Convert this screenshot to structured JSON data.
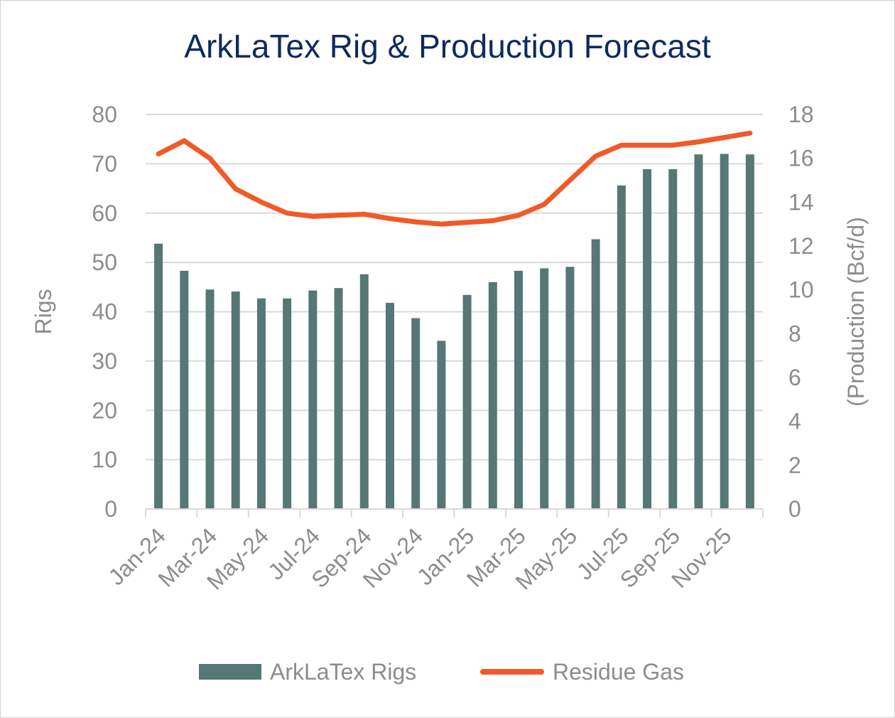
{
  "colors": {
    "bars": "#557775",
    "line": "#f05a28",
    "title": "#0e2a5e",
    "axis_text": "#8c8c8c",
    "grid": "#d9d9d9"
  },
  "chart_data": {
    "type": "bar",
    "title": "ArkLaTex Rig & Production Forecast",
    "ylabel": "Rigs",
    "y2label": "(Production (Bcf/d)",
    "ylim": [
      0,
      80
    ],
    "y2lim": [
      0,
      18
    ],
    "yticks": [
      "0",
      "10",
      "20",
      "30",
      "40",
      "50",
      "60",
      "70",
      "80"
    ],
    "y2ticks": [
      "0",
      "2",
      "4",
      "6",
      "8",
      "10",
      "12",
      "14",
      "16",
      "18"
    ],
    "xtick_labels": [
      "Jan-24",
      "Mar-24",
      "May-24",
      "Jul-24",
      "Sep-24",
      "Nov-24",
      "Jan-25",
      "Mar-25",
      "May-25",
      "Jul-25",
      "Sep-25",
      "Nov-25"
    ],
    "categories": [
      "Jan-24",
      "Feb-24",
      "Mar-24",
      "Apr-24",
      "May-24",
      "Jun-24",
      "Jul-24",
      "Aug-24",
      "Sep-24",
      "Oct-24",
      "Nov-24",
      "Dec-24",
      "Jan-25",
      "Feb-25",
      "Mar-25",
      "Apr-25",
      "May-25",
      "Jun-25",
      "Jul-25",
      "Aug-25",
      "Sep-25",
      "Oct-25",
      "Nov-25",
      "Dec-25"
    ],
    "grid": true,
    "legend_position": "bottom",
    "series": [
      {
        "name": "ArkLaTex Rigs",
        "type": "bar",
        "axis": "left",
        "values": [
          53.8,
          48.3,
          44.5,
          44.1,
          42.7,
          42.7,
          44.3,
          44.8,
          47.6,
          41.8,
          38.7,
          34.1,
          43.4,
          46.0,
          48.3,
          48.8,
          49.1,
          54.7,
          65.6,
          68.9,
          68.9,
          71.9,
          72.0,
          71.9
        ]
      },
      {
        "name": "Residue Gas",
        "type": "line",
        "axis": "right",
        "values": [
          16.2,
          16.8,
          16.0,
          14.6,
          14.0,
          13.5,
          13.35,
          13.4,
          13.45,
          13.25,
          13.1,
          13.0,
          13.08,
          13.15,
          13.4,
          13.9,
          15.0,
          16.1,
          16.6,
          16.6,
          16.6,
          16.75,
          16.95,
          17.15
        ]
      }
    ]
  },
  "legend": {
    "bars_label": "ArkLaTex Rigs",
    "line_label": "Residue Gas"
  }
}
